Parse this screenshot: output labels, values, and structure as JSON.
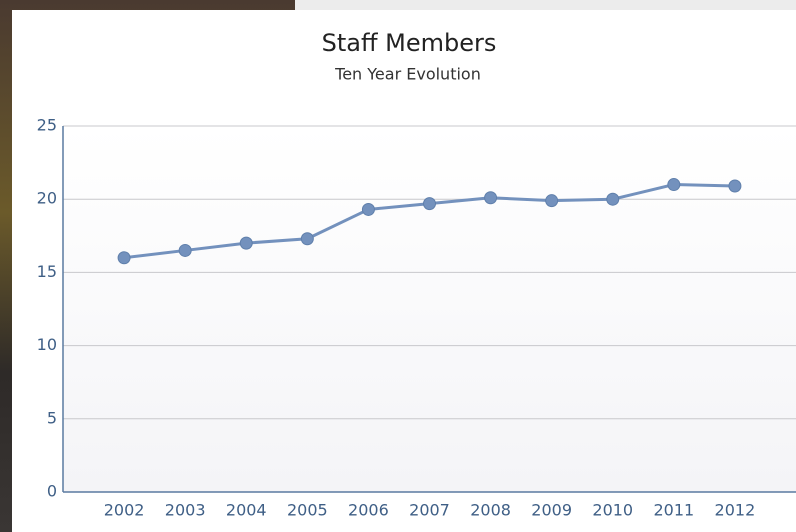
{
  "chart_data": {
    "type": "line",
    "title": "Staff Members",
    "subtitle": "Ten Year Evolution",
    "categories": [
      "2002",
      "2003",
      "2004",
      "2005",
      "2006",
      "2007",
      "2008",
      "2009",
      "2010",
      "2011",
      "2012"
    ],
    "values": [
      16,
      16.5,
      17,
      17.3,
      19.3,
      19.7,
      20.1,
      19.9,
      20,
      21,
      20.9
    ],
    "color": "#7391bd",
    "ylim": [
      0,
      25
    ],
    "yticks": [
      0,
      5,
      10,
      15,
      20,
      25
    ],
    "grid": true
  }
}
